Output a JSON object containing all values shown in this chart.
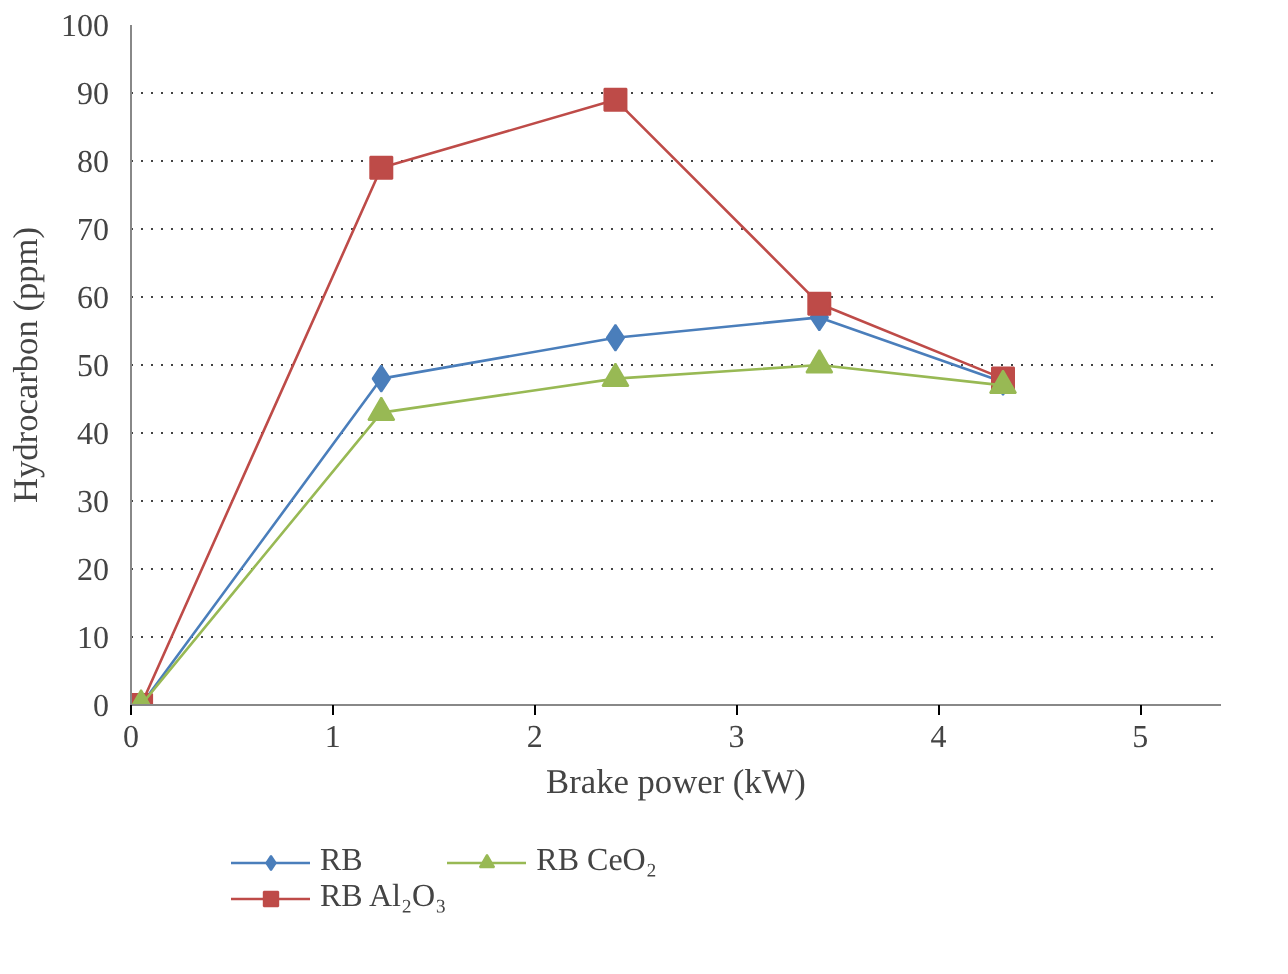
{
  "chart_data": {
    "type": "line",
    "xlabel": "Brake power (kW)",
    "ylabel": "Hydrocarbon (ppm)",
    "xlim": [
      0,
      5.4
    ],
    "xticks": [
      0,
      1,
      2,
      3,
      4,
      5
    ],
    "ylim": [
      0,
      100
    ],
    "yticks": [
      0,
      10,
      20,
      30,
      40,
      50,
      60,
      70,
      80,
      90,
      100
    ],
    "grid": "y",
    "legend": "bottom",
    "series": [
      {
        "name": "RB",
        "color": "#4a7ebb",
        "marker": "diamond",
        "x": [
          0.05,
          1.24,
          2.4,
          3.41,
          4.32
        ],
        "values": [
          0,
          48,
          54,
          57,
          47.5
        ]
      },
      {
        "name": "RB Al₂O₃",
        "color": "#be4b48",
        "marker": "square",
        "x": [
          0.05,
          1.24,
          2.4,
          3.41,
          4.32
        ],
        "values": [
          0,
          79,
          89,
          59,
          48
        ]
      },
      {
        "name": "RB CeO₂",
        "color": "#98b954",
        "marker": "triangle",
        "x": [
          0.05,
          1.24,
          2.4,
          3.41,
          4.32
        ],
        "values": [
          0,
          43,
          48,
          50,
          47
        ]
      }
    ]
  }
}
